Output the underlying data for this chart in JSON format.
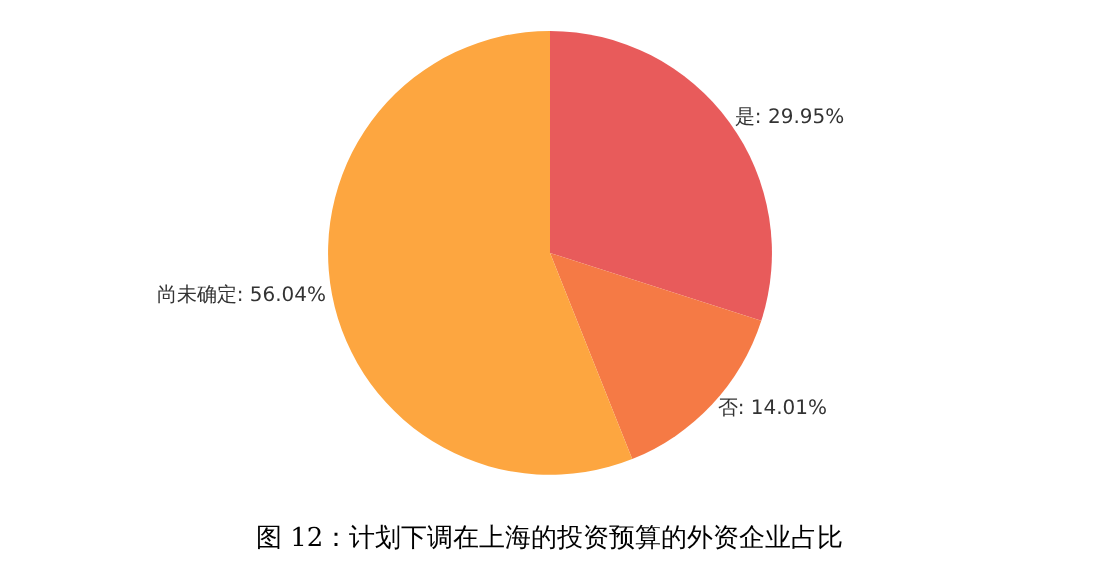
{
  "chart_data": {
    "type": "pie",
    "categories": [
      "是",
      "否",
      "尚未确定"
    ],
    "values": [
      29.95,
      14.01,
      56.04
    ],
    "colors": [
      "#e85b5b",
      "#f57a45",
      "#fda640"
    ],
    "value_labels": [
      "29.95%",
      "14.01%",
      "56.04%"
    ],
    "legend": false,
    "annotations": [
      "图 12：计划下调在上海的投资预算的外资企业占比"
    ]
  }
}
